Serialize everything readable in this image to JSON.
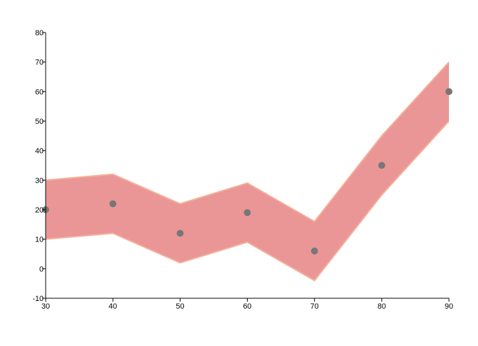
{
  "chart_data": {
    "type": "area",
    "title": "",
    "xlabel": "",
    "ylabel": "",
    "xlim": [
      30,
      90
    ],
    "ylim": [
      -10,
      80
    ],
    "x_ticks": [
      30,
      40,
      50,
      60,
      70,
      80,
      90
    ],
    "y_ticks": [
      -10,
      0,
      10,
      20,
      30,
      40,
      50,
      60,
      70,
      80
    ],
    "grid": false,
    "x": [
      30,
      40,
      50,
      60,
      70,
      80,
      90
    ],
    "series": [
      {
        "kind": "range",
        "upper": [
          30,
          32,
          22,
          29,
          16,
          45,
          70
        ],
        "lower": [
          10,
          12,
          2,
          9,
          -4,
          25,
          50
        ],
        "color": "#EA9696",
        "stroke": "#F5B09A"
      },
      {
        "kind": "scatter",
        "values": [
          20,
          22,
          12,
          19,
          6,
          35,
          60
        ],
        "color": "#777777"
      }
    ]
  }
}
